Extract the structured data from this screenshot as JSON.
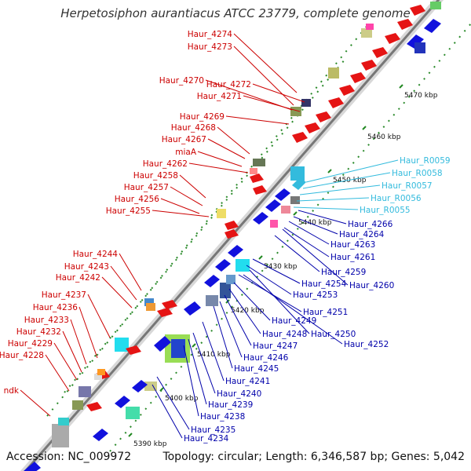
{
  "title": "Herpetosiphon aurantiacus ATCC 23779, complete genome",
  "footer": {
    "accession": "Accession: NC_009972",
    "topology": "Topology: circular; Length: 6,346,587 bp; Genes: 5,042"
  },
  "colors": {
    "left_labels": "#cc0000",
    "right_labels": "#0000aa",
    "rna_labels": "#33bbdd",
    "backbone": "#888888",
    "tick": "#228822"
  },
  "kbp_ticks": [
    "5470 kbp",
    "5460 kbp",
    "5450 kbp",
    "5440 kbp",
    "5430 kbp",
    "5420 kbp",
    "5410 kbp",
    "5400 kbp",
    "5390 kbp"
  ],
  "left_labels": [
    "Haur_4274",
    "Haur_4273",
    "Haur_4270",
    "Haur_4272",
    "Haur_4271",
    "Haur_4269",
    "Haur_4268",
    "Haur_4267",
    "miaA",
    "Haur_4262",
    "Haur_4258",
    "Haur_4257",
    "Haur_4256",
    "Haur_4255",
    "Haur_4244",
    "Haur_4243",
    "Haur_4242",
    "Haur_4237",
    "Haur_4236",
    "Haur_4233",
    "Haur_4232",
    "Haur_4229",
    "Haur_4228",
    "ndk"
  ],
  "rna_labels": [
    "Haur_R0059",
    "Haur_R0058",
    "Haur_R0057",
    "Haur_R0056",
    "Haur_R0055"
  ],
  "right_labels": [
    "Haur_4266",
    "Haur_4264",
    "Haur_4263",
    "Haur_4261",
    "Haur_4259",
    "Haur_4260",
    "Haur_4254",
    "Haur_4253",
    "Haur_4251",
    "Haur_4249",
    "Haur_4250",
    "Haur_4248",
    "Haur_4252",
    "Haur_4247",
    "Haur_4246",
    "Haur_4245",
    "Haur_4241",
    "Haur_4240",
    "Haur_4239",
    "Haur_4238",
    "Haur_4235",
    "Haur_4234"
  ]
}
